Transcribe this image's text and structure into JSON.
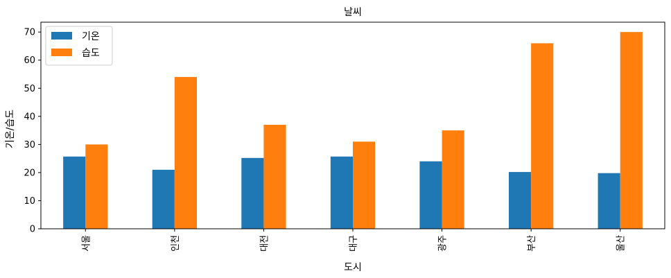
{
  "chart_data": {
    "type": "bar",
    "title": "날씨",
    "xlabel": "도시",
    "ylabel": "기온/습도",
    "categories": [
      "서울",
      "인천",
      "대전",
      "대구",
      "광주",
      "부산",
      "울산"
    ],
    "series": [
      {
        "name": "기온",
        "color": "#1f77b4",
        "values": [
          25.7,
          21.0,
          25.2,
          25.7,
          24.0,
          20.2,
          19.8
        ]
      },
      {
        "name": "습도",
        "color": "#ff7f0e",
        "values": [
          30,
          54,
          37,
          31,
          35,
          66,
          70
        ]
      }
    ],
    "ylim": [
      0,
      73.5
    ],
    "yticks": [
      0,
      10,
      20,
      30,
      40,
      50,
      60,
      70
    ],
    "grid": false,
    "legend": "upper left"
  }
}
